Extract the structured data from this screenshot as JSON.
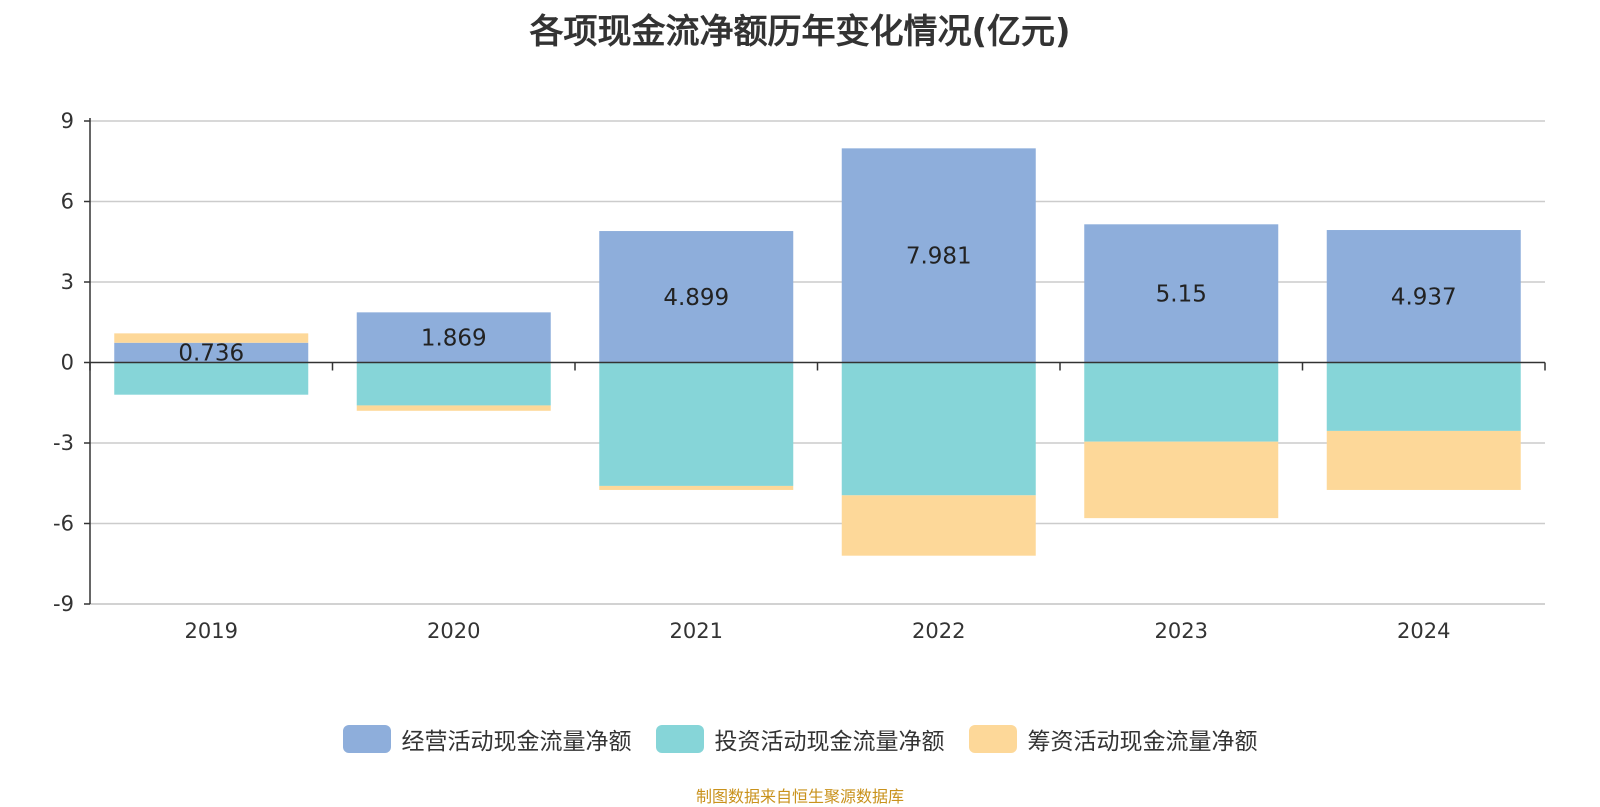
{
  "title": "各项现金流净额历年变化情况(亿元)",
  "source": "制图数据来自恒生聚源数据库",
  "source_color": "#c9921c",
  "colors": {
    "operating": "#8eaedb",
    "investing": "#86d5d8",
    "financing": "#fdd899",
    "grid": "#cccccc",
    "axis": "#333333"
  },
  "chart_data": {
    "type": "bar",
    "stacked": true,
    "title": "各项现金流净额历年变化情况(亿元)",
    "categories": [
      "2019",
      "2020",
      "2021",
      "2022",
      "2023",
      "2024"
    ],
    "ylim": [
      -9,
      9
    ],
    "yticks": [
      9,
      6,
      3,
      0,
      -3,
      -6,
      -9
    ],
    "grid": true,
    "legend_position": "bottom",
    "series": [
      {
        "name": "经营活动现金流量净额",
        "color_key": "operating",
        "values": [
          0.736,
          1.869,
          4.899,
          7.981,
          5.15,
          4.937
        ],
        "data_labels": [
          "0.736",
          "1.869",
          "4.899",
          "7.981",
          "5.15",
          "4.937"
        ]
      },
      {
        "name": "投资活动现金流量净额",
        "color_key": "investing",
        "values": [
          -1.2,
          -1.6,
          -4.6,
          -4.95,
          -2.95,
          -2.55
        ]
      },
      {
        "name": "筹资活动现金流量净额",
        "color_key": "financing",
        "values": [
          0.35,
          -0.2,
          -0.15,
          -2.25,
          -2.85,
          -2.2
        ]
      }
    ]
  }
}
